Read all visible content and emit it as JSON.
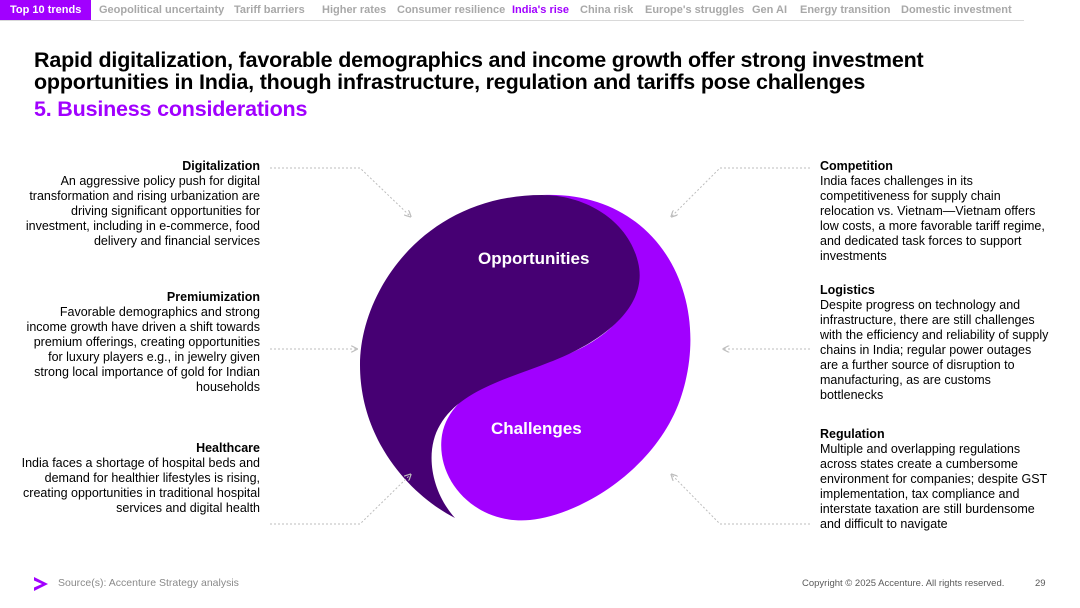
{
  "nav": {
    "items": [
      {
        "label": "Top 10 trends",
        "state": "first"
      },
      {
        "label": "Geopolitical uncertainty",
        "state": ""
      },
      {
        "label": "Tariff barriers",
        "state": ""
      },
      {
        "label": "Higher rates",
        "state": ""
      },
      {
        "label": "Consumer resilience",
        "state": ""
      },
      {
        "label": "India's rise",
        "state": "active"
      },
      {
        "label": "China risk",
        "state": ""
      },
      {
        "label": "Europe's struggles",
        "state": ""
      },
      {
        "label": "Gen AI",
        "state": ""
      },
      {
        "label": "Energy transition",
        "state": ""
      },
      {
        "label": "Domestic investment",
        "state": ""
      }
    ]
  },
  "headline": "Rapid digitalization, favorable demographics and income growth offer strong investment opportunities in India, though infrastructure, regulation and tariffs pose challenges",
  "subhead": "5. Business considerations",
  "diagram": {
    "top_label": "Opportunities",
    "bottom_label": "Challenges",
    "colors": {
      "opportunities": "#460073",
      "challenges": "#a100ff",
      "connector": "#bdbdbd"
    }
  },
  "opportunities": [
    {
      "title": "Digitalization",
      "desc": "An aggressive policy push for digital transformation and rising urbanization are driving significant opportunities for investment, including in e-commerce, food delivery and financial services"
    },
    {
      "title": "Premiumization",
      "desc": "Favorable demographics and strong income growth have driven a shift towards premium offerings, creating opportunities for luxury players e.g., in jewelry given strong local importance of gold for Indian households"
    },
    {
      "title": "Healthcare",
      "desc": "India faces a shortage of hospital beds and demand for healthier lifestyles is rising, creating opportunities in traditional hospital services and digital health"
    }
  ],
  "challenges": [
    {
      "title": "Competition",
      "desc": "India faces challenges in its competitiveness for supply chain relocation vs. Vietnam—Vietnam offers low costs, a more favorable tariff regime, and dedicated task forces to support investments"
    },
    {
      "title": "Logistics",
      "desc": "Despite progress on technology and infrastructure, there are still challenges with the efficiency and reliability of supply chains in India; regular power outages are a further source of disruption to manufacturing, as are customs bottlenecks"
    },
    {
      "title": "Regulation",
      "desc": "Multiple and overlapping regulations across states create a cumbersome environment for companies; despite GST implementation, tax compliance and interstate taxation are still burdensome and difficult to navigate"
    }
  ],
  "footer": {
    "logo_icon": "accenture-chevron-icon",
    "source": "Source(s): Accenture Strategy analysis",
    "copyright": "Copyright © 2025 Accenture. All rights reserved.",
    "page_number": "29"
  }
}
